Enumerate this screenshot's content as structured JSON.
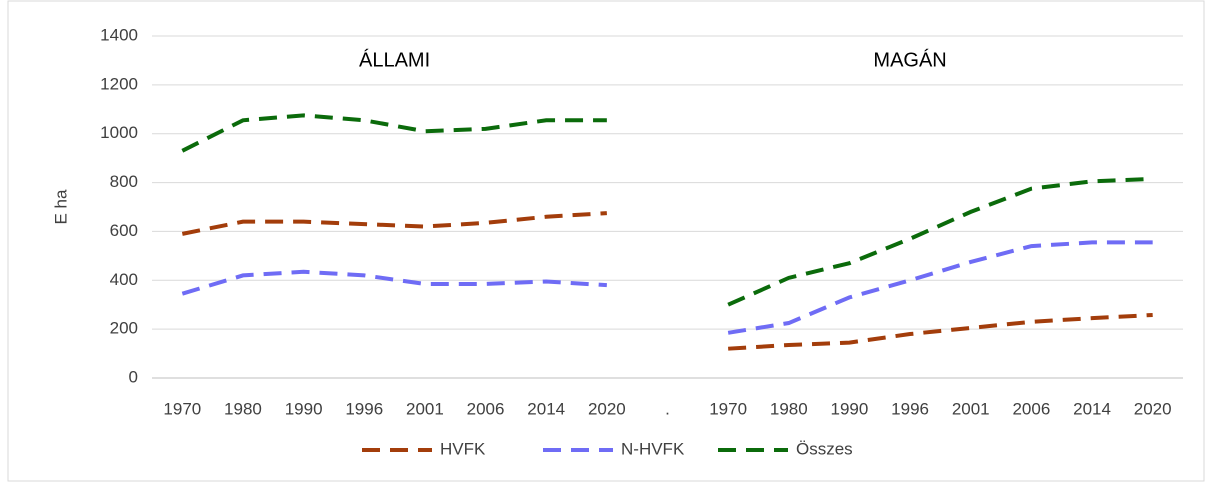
{
  "chart_data": {
    "type": "line",
    "ylabel": "E ha",
    "annotations": [
      "ÁLLAMI",
      "MAGÁN"
    ],
    "categories": [
      "1970",
      "1980",
      "1990",
      "1996",
      "2001",
      "2006",
      "2014",
      "2020",
      ".",
      "1970",
      "1980",
      "1990",
      "1996",
      "2001",
      "2006",
      "2014",
      "2020"
    ],
    "series": [
      {
        "name": "HVFK",
        "color": "#a33d0b",
        "values": [
          590,
          640,
          640,
          630,
          620,
          635,
          660,
          675,
          null,
          120,
          135,
          145,
          180,
          205,
          230,
          245,
          258
        ]
      },
      {
        "name": "N-HVFK",
        "color": "#6f6cf5",
        "values": [
          345,
          420,
          435,
          420,
          385,
          385,
          395,
          380,
          null,
          185,
          225,
          330,
          400,
          475,
          540,
          555,
          555
        ]
      },
      {
        "name": "Összes",
        "color": "#0b6b0b",
        "values": [
          930,
          1055,
          1075,
          1055,
          1010,
          1020,
          1055,
          1055,
          null,
          300,
          410,
          470,
          570,
          680,
          775,
          805,
          815
        ]
      }
    ],
    "ylim": [
      0,
      1400
    ],
    "yticks": [
      0,
      200,
      400,
      600,
      800,
      1000,
      1200,
      1400
    ],
    "grid": true,
    "legend": "bottom"
  }
}
